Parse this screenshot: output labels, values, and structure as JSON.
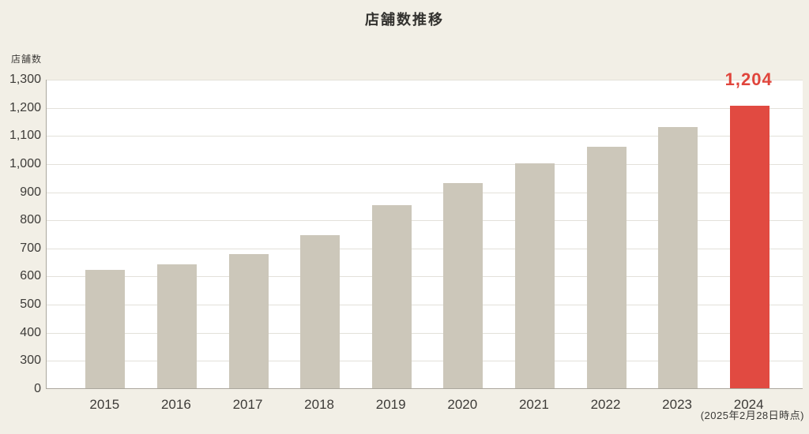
{
  "page": {
    "title": "店舗数推移",
    "y_axis_unit": "店舗数",
    "footnote": "(2025年2月28日時点)"
  },
  "chart_data": {
    "type": "bar",
    "title": "店舗数推移",
    "xlabel": "",
    "ylabel": "店舗数",
    "categories": [
      "2015",
      "2016",
      "2017",
      "2018",
      "2019",
      "2020",
      "2021",
      "2022",
      "2023",
      "2024"
    ],
    "values": [
      620,
      640,
      676,
      745,
      850,
      930,
      1000,
      1060,
      1130,
      1204
    ],
    "highlight_index": 9,
    "highlight_value_label": "1,204",
    "annotation": "(2025年2月28日時点)",
    "y_ticks": [
      0,
      300,
      400,
      500,
      600,
      700,
      800,
      900,
      1000,
      1100,
      1200,
      1300
    ],
    "y_tick_labels": [
      "0",
      "300",
      "400",
      "500",
      "600",
      "700",
      "800",
      "900",
      "1,000",
      "1,100",
      "1,200",
      "1,300"
    ],
    "ylim": [
      0,
      1300
    ],
    "axis_note": "y-axis is compressed between 0 and 300: every labeled tick (including the 0-to-300 jump) uses one equal gridline spacing",
    "grid": "horizontal gridlines on, white plot area on cream page background",
    "legend": "none",
    "colors": {
      "bar": "#ccc7ba",
      "highlight_bar": "#e14a41",
      "highlight_text": "#e0453c",
      "background": "#f2efe6",
      "plot_background": "#ffffff",
      "gridline": "#e3e1da",
      "axis_line": "#aba79d",
      "text": "#3d3b38"
    }
  }
}
